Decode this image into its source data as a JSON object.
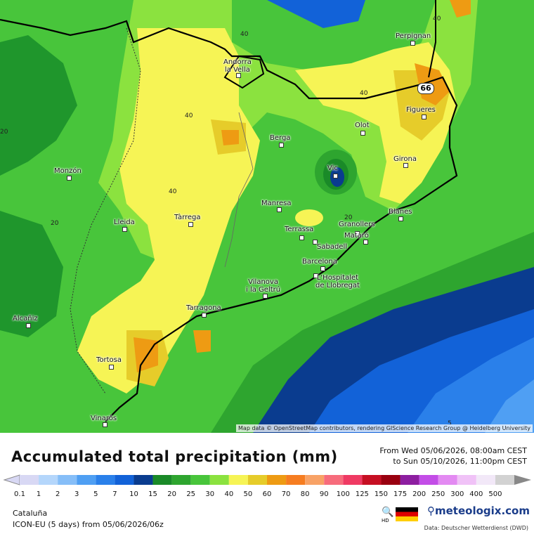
{
  "map": {
    "cities": [
      {
        "name": "Perpignan"
      },
      {
        "name": "Andorra\nla Vella"
      },
      {
        "name": "Figueres"
      },
      {
        "name": "Olot"
      },
      {
        "name": "Berga"
      },
      {
        "name": "Girona"
      },
      {
        "name": "Vic"
      },
      {
        "name": "Monzón"
      },
      {
        "name": "Manresa"
      },
      {
        "name": "Blanes"
      },
      {
        "name": "Lleida"
      },
      {
        "name": "Tàrrega"
      },
      {
        "name": "Granollers"
      },
      {
        "name": "Terrassa"
      },
      {
        "name": "Mataró"
      },
      {
        "name": "Sabadell"
      },
      {
        "name": "Barcelona"
      },
      {
        "name": "L'Hospitalet\nde Llobregat"
      },
      {
        "name": "Vilanova\ni la Geltrú"
      },
      {
        "name": "Tarragona"
      },
      {
        "name": "Alcañiz"
      },
      {
        "name": "Tortosa"
      },
      {
        "name": "Vinaròs"
      }
    ],
    "contour_labels": [
      "40",
      "40",
      "40",
      "40",
      "40",
      "20",
      "20",
      "20",
      "5"
    ],
    "max_value": "66",
    "attribution": "Map data © OpenStreetMap contributors, rendering GIScience Research Group @ Heidelberg University"
  },
  "footer": {
    "title": "Accumulated total precipitation (mm)",
    "date_from": "From Wed 05/06/2026, 08:00am CEST",
    "date_to": "to Sun 05/10/2026, 11:00pm CEST",
    "region": "Cataluña",
    "model": "ICON-EU (5 days) from 05/06/2026/06z",
    "brand": "meteologix.com",
    "source": "Data: Deutscher Wetterdienst (DWD)",
    "hd": "HD"
  },
  "legend": {
    "labels": [
      "0.1",
      "1",
      "2",
      "3",
      "5",
      "7",
      "10",
      "15",
      "20",
      "25",
      "30",
      "40",
      "50",
      "60",
      "70",
      "80",
      "90",
      "100",
      "125",
      "150",
      "175",
      "200",
      "250",
      "300",
      "400",
      "500"
    ],
    "colors": [
      "#d8d8f4",
      "#b4d6fb",
      "#86bef8",
      "#4f9ff3",
      "#2a80ea",
      "#1262d8",
      "#0a3c8f",
      "#1a8a28",
      "#2ea52f",
      "#48c53b",
      "#8be23f",
      "#f6f455",
      "#e6cc2a",
      "#ee9b13",
      "#f67d21",
      "#f8a266",
      "#f76c7c",
      "#ef3a63",
      "#c60f23",
      "#990010",
      "#8d1ea0",
      "#c34de7",
      "#e38af2",
      "#f0c2f7",
      "#f2e8f8",
      "#d2d2d2"
    ]
  }
}
